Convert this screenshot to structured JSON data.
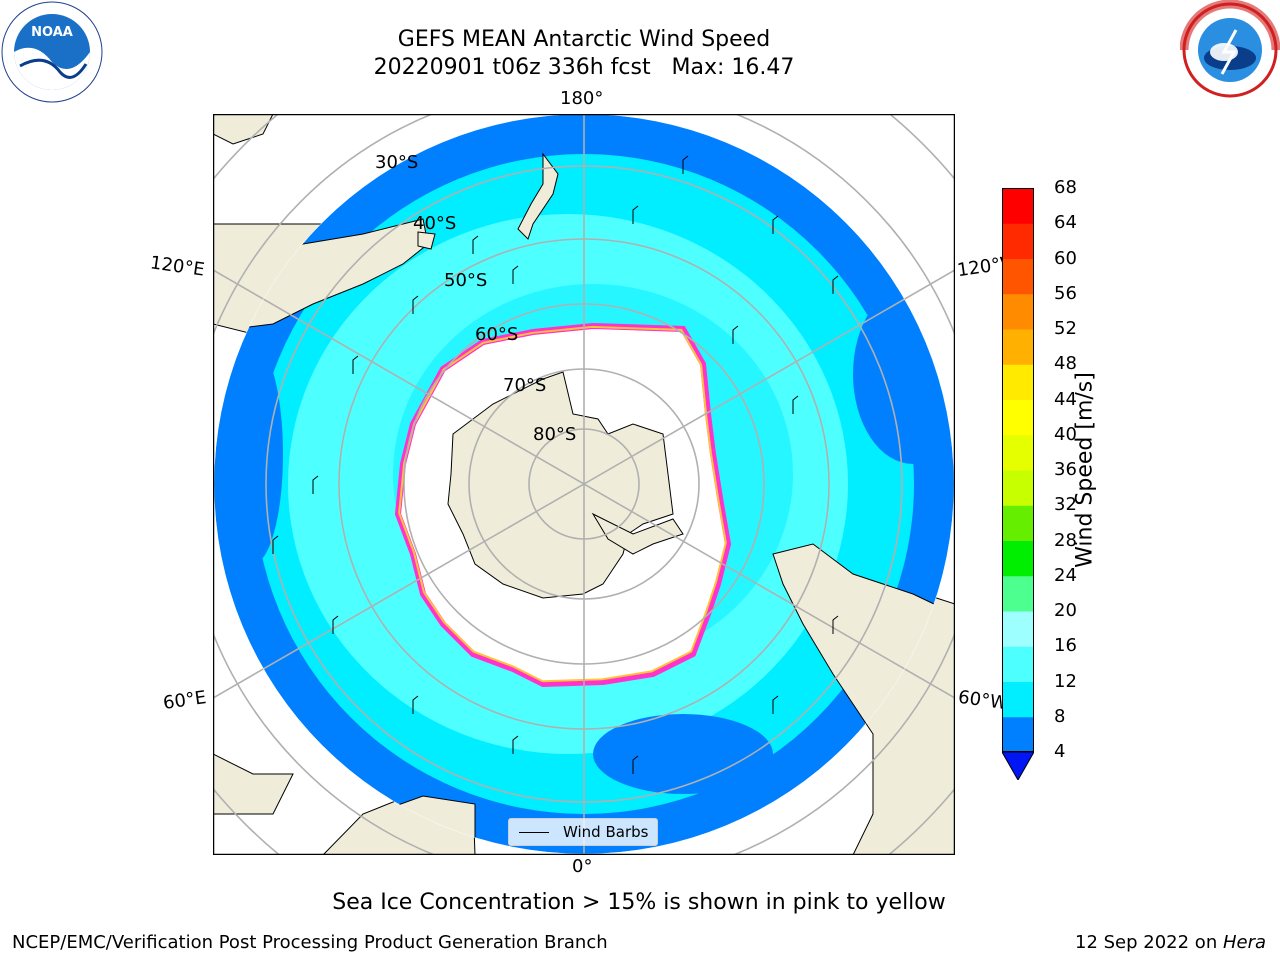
{
  "title": {
    "line1": "GEFS MEAN Antarctic Wind Speed",
    "line2": "20220901 t06z 336h fcst   Max: 16.47"
  },
  "logos": {
    "left": {
      "name": "noaa-logo",
      "text": "NOAA"
    },
    "right": {
      "name": "nws-logo"
    }
  },
  "map": {
    "projection": "south-polar-stereographic",
    "longitude_labels": {
      "top": "180°",
      "bottom": "0°",
      "upper_left": "120°E",
      "upper_right": "120°W",
      "lower_left": "60°E",
      "lower_right": "60°W"
    },
    "latitude_labels": [
      "30°S",
      "40°S",
      "50°S",
      "60°S",
      "70°S",
      "80°S"
    ],
    "legend": {
      "label": "Wind Barbs"
    },
    "colors": {
      "land": "#efedda",
      "ice_interior": "#ffffff",
      "ice_edge": [
        "#ff33cc",
        "#ffc23a"
      ],
      "gridline": "#b0b0b0"
    }
  },
  "colorbar": {
    "label": "Wind Speed [m/s]",
    "ticks": [
      "68",
      "64",
      "60",
      "56",
      "52",
      "48",
      "44",
      "40",
      "36",
      "32",
      "28",
      "24",
      "20",
      "16",
      "12",
      "8",
      "4"
    ],
    "colors": [
      "#0016f5",
      "#0080ff",
      "#00eeff",
      "#4dffff",
      "#9dffff",
      "#4dff8f",
      "#00ee00",
      "#66ee00",
      "#c8ff00",
      "#e6ff00",
      "#ffff00",
      "#ffea00",
      "#ffb000",
      "#ff8c00",
      "#ff5500",
      "#ff2a00",
      "#ff0000"
    ]
  },
  "caption": "Sea Ice Concentration > 15% is shown in pink to yellow",
  "footer": {
    "left": "NCEP/EMC/Verification Post Processing Product Generation Branch",
    "right_prefix": "12 Sep 2022 on ",
    "right_host": "Hera"
  }
}
